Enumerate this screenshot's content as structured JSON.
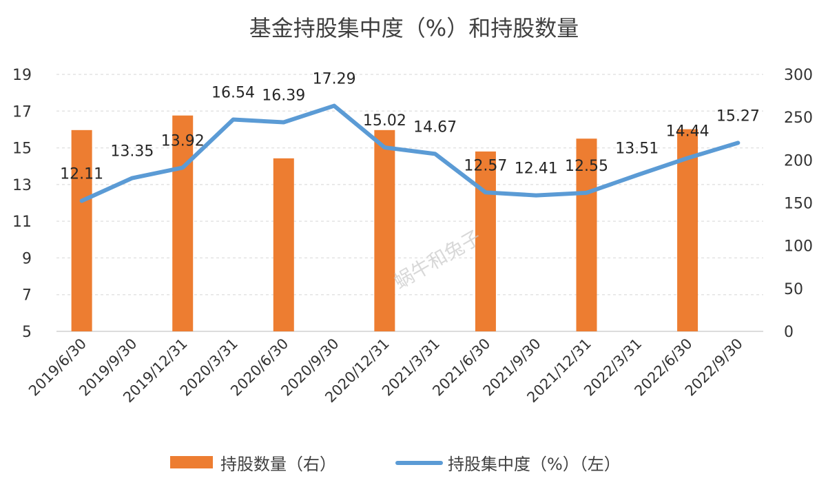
{
  "chart_data": {
    "type": "bar+line",
    "title": "基金持股集中度（%）和持股数量",
    "categories": [
      "2019/6/30",
      "2019/9/30",
      "2019/12/31",
      "2020/3/31",
      "2020/6/30",
      "2020/9/30",
      "2020/12/31",
      "2021/3/31",
      "2021/6/30",
      "2021/9/30",
      "2021/12/31",
      "2022/3/31",
      "2022/6/30",
      "2022/9/30"
    ],
    "series": [
      {
        "name": "持股数量（右）",
        "type": "bar",
        "axis": "right",
        "color": "#ED7D31",
        "values": [
          235,
          null,
          252,
          null,
          202,
          null,
          235,
          null,
          210,
          null,
          225,
          null,
          236,
          null
        ]
      },
      {
        "name": "持股集中度（%）（左）",
        "type": "line",
        "axis": "left",
        "color": "#5B9BD5",
        "values": [
          12.11,
          13.35,
          13.92,
          16.54,
          16.39,
          17.29,
          15.02,
          14.67,
          12.57,
          12.41,
          12.55,
          13.51,
          14.44,
          15.27
        ]
      }
    ],
    "y_left": {
      "min": 5,
      "max": 19,
      "ticks": [
        "5",
        "7",
        "9",
        "11",
        "13",
        "15",
        "17",
        "19"
      ]
    },
    "y_right": {
      "min": 0,
      "max": 300,
      "ticks": [
        "0",
        "50",
        "100",
        "150",
        "200",
        "250",
        "300"
      ]
    },
    "grid": true,
    "legend_position": "bottom",
    "watermark": "蜗牛和兔子"
  }
}
